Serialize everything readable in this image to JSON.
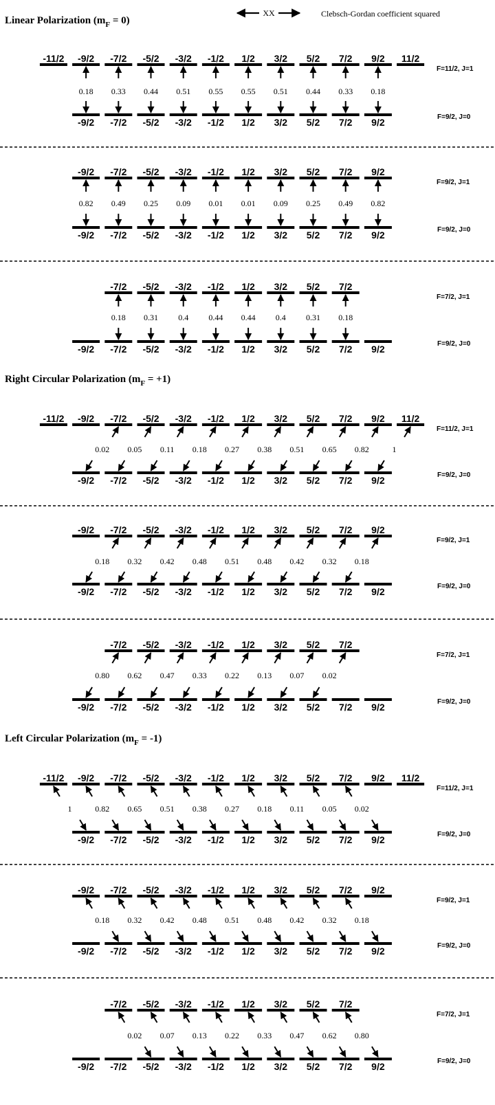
{
  "legend": {
    "arrow_label": "XX",
    "description": "Clebsch-Gordan coefficient squared"
  },
  "sections": [
    {
      "title": "Linear Polarization (m",
      "title_sub": "F",
      "title_tail": " = 0)",
      "shift": 0,
      "blocks": [
        {
          "upper": {
            "label": "F=11/2, J=1",
            "mf": [
              "-11/2",
              "-9/2",
              "-7/2",
              "-5/2",
              "-3/2",
              "-1/2",
              "1/2",
              "3/2",
              "5/2",
              "7/2",
              "9/2",
              "11/2"
            ]
          },
          "lower": {
            "label": "F=9/2, J=0",
            "mf": [
              "-9/2",
              "-7/2",
              "-5/2",
              "-3/2",
              "-1/2",
              "1/2",
              "3/2",
              "5/2",
              "7/2",
              "9/2"
            ]
          },
          "coefficients": [
            "0.18",
            "0.33",
            "0.44",
            "0.51",
            "0.55",
            "0.55",
            "0.51",
            "0.44",
            "0.33",
            "0.18"
          ]
        },
        {
          "upper": {
            "label": "F=9/2, J=1",
            "mf": [
              "-9/2",
              "-7/2",
              "-5/2",
              "-3/2",
              "-1/2",
              "1/2",
              "3/2",
              "5/2",
              "7/2",
              "9/2"
            ]
          },
          "lower": {
            "label": "F=9/2, J=0",
            "mf": [
              "-9/2",
              "-7/2",
              "-5/2",
              "-3/2",
              "-1/2",
              "1/2",
              "3/2",
              "5/2",
              "7/2",
              "9/2"
            ]
          },
          "coefficients": [
            "0.82",
            "0.49",
            "0.25",
            "0.09",
            "0.01",
            "0.01",
            "0.09",
            "0.25",
            "0.49",
            "0.82"
          ]
        },
        {
          "upper": {
            "label": "F=7/2, J=1",
            "mf": [
              "-7/2",
              "-5/2",
              "-3/2",
              "-1/2",
              "1/2",
              "3/2",
              "5/2",
              "7/2"
            ]
          },
          "lower": {
            "label": "F=9/2, J=0",
            "mf": [
              "-9/2",
              "-7/2",
              "-5/2",
              "-3/2",
              "-1/2",
              "1/2",
              "3/2",
              "5/2",
              "7/2",
              "9/2"
            ]
          },
          "coefficients": [
            "0.18",
            "0.31",
            "0.4",
            "0.44",
            "0.44",
            "0.4",
            "0.31",
            "0.18"
          ]
        }
      ]
    },
    {
      "title": "Right Circular Polarization (m",
      "title_sub": "F",
      "title_tail": " = +1)",
      "shift": 1,
      "blocks": [
        {
          "upper": {
            "label": "F=11/2, J=1",
            "mf": [
              "-11/2",
              "-9/2",
              "-7/2",
              "-5/2",
              "-3/2",
              "-1/2",
              "1/2",
              "3/2",
              "5/2",
              "7/2",
              "9/2",
              "11/2"
            ]
          },
          "lower": {
            "label": "F=9/2, J=0",
            "mf": [
              "-9/2",
              "-7/2",
              "-5/2",
              "-3/2",
              "-1/2",
              "1/2",
              "3/2",
              "5/2",
              "7/2",
              "9/2"
            ]
          },
          "coefficients": [
            "0.02",
            "0.05",
            "0.11",
            "0.18",
            "0.27",
            "0.38",
            "0.51",
            "0.65",
            "0.82",
            "1"
          ]
        },
        {
          "upper": {
            "label": "F=9/2, J=1",
            "mf": [
              "-9/2",
              "-7/2",
              "-5/2",
              "-3/2",
              "-1/2",
              "1/2",
              "3/2",
              "5/2",
              "7/2",
              "9/2"
            ]
          },
          "lower": {
            "label": "F=9/2, J=0",
            "mf": [
              "-9/2",
              "-7/2",
              "-5/2",
              "-3/2",
              "-1/2",
              "1/2",
              "3/2",
              "5/2",
              "7/2",
              "9/2"
            ]
          },
          "coefficients": [
            "0.18",
            "0.32",
            "0.42",
            "0.48",
            "0.51",
            "0.48",
            "0.42",
            "0.32",
            "0.18"
          ]
        },
        {
          "upper": {
            "label": "F=7/2, J=1",
            "mf": [
              "-7/2",
              "-5/2",
              "-3/2",
              "-1/2",
              "1/2",
              "3/2",
              "5/2",
              "7/2"
            ]
          },
          "lower": {
            "label": "F=9/2, J=0",
            "mf": [
              "-9/2",
              "-7/2",
              "-5/2",
              "-3/2",
              "-1/2",
              "1/2",
              "3/2",
              "5/2",
              "7/2",
              "9/2"
            ]
          },
          "coefficients": [
            "0.80",
            "0.62",
            "0.47",
            "0.33",
            "0.22",
            "0.13",
            "0.07",
            "0.02"
          ]
        }
      ]
    },
    {
      "title": "Left Circular Polarization (m",
      "title_sub": "F",
      "title_tail": " = -1)",
      "shift": -1,
      "blocks": [
        {
          "upper": {
            "label": "F=11/2, J=1",
            "mf": [
              "-11/2",
              "-9/2",
              "-7/2",
              "-5/2",
              "-3/2",
              "-1/2",
              "1/2",
              "3/2",
              "5/2",
              "7/2",
              "9/2",
              "11/2"
            ]
          },
          "lower": {
            "label": "F=9/2, J=0",
            "mf": [
              "-9/2",
              "-7/2",
              "-5/2",
              "-3/2",
              "-1/2",
              "1/2",
              "3/2",
              "5/2",
              "7/2",
              "9/2"
            ]
          },
          "coefficients": [
            "1",
            "0.82",
            "0.65",
            "0.51",
            "0.38",
            "0.27",
            "0.18",
            "0.11",
            "0.05",
            "0.02"
          ]
        },
        {
          "upper": {
            "label": "F=9/2, J=1",
            "mf": [
              "-9/2",
              "-7/2",
              "-5/2",
              "-3/2",
              "-1/2",
              "1/2",
              "3/2",
              "5/2",
              "7/2",
              "9/2"
            ]
          },
          "lower": {
            "label": "F=9/2, J=0",
            "mf": [
              "-9/2",
              "-7/2",
              "-5/2",
              "-3/2",
              "-1/2",
              "1/2",
              "3/2",
              "5/2",
              "7/2",
              "9/2"
            ]
          },
          "coefficients": [
            "0.18",
            "0.32",
            "0.42",
            "0.48",
            "0.51",
            "0.48",
            "0.42",
            "0.32",
            "0.18"
          ]
        },
        {
          "upper": {
            "label": "F=7/2, J=1",
            "mf": [
              "-7/2",
              "-5/2",
              "-3/2",
              "-1/2",
              "1/2",
              "3/2",
              "5/2",
              "7/2"
            ]
          },
          "lower": {
            "label": "F=9/2, J=0",
            "mf": [
              "-9/2",
              "-7/2",
              "-5/2",
              "-3/2",
              "-1/2",
              "1/2",
              "3/2",
              "5/2",
              "7/2",
              "9/2"
            ]
          },
          "coefficients": [
            "0.02",
            "0.07",
            "0.13",
            "0.22",
            "0.33",
            "0.47",
            "0.62",
            "0.80"
          ]
        }
      ]
    }
  ]
}
